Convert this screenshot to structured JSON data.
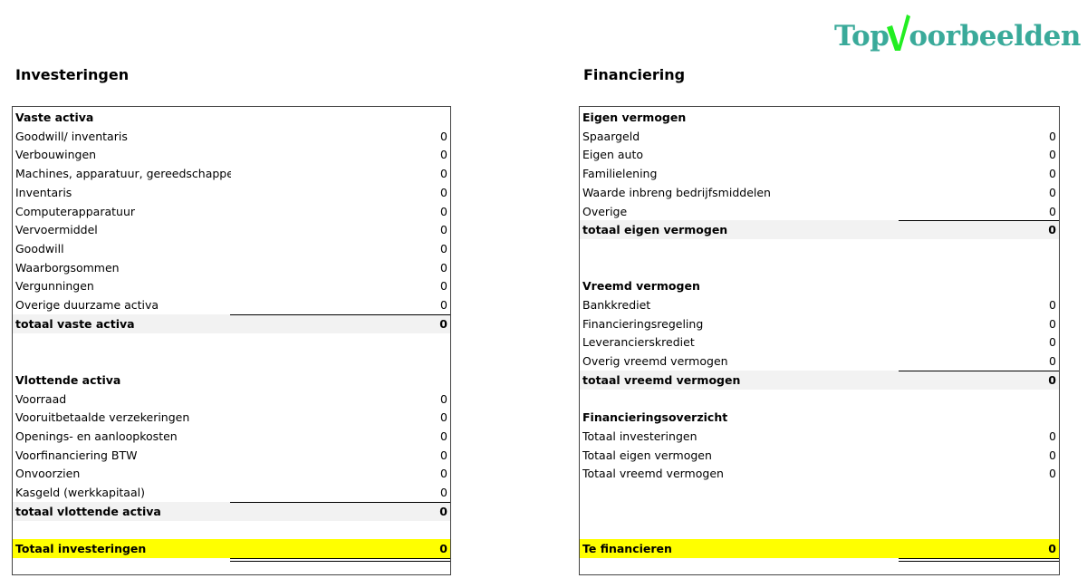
{
  "logo": {
    "text_before": "Top",
    "text_after": "oorbeelden",
    "check_color": "#22ee22",
    "text_color": "#3aaa9a"
  },
  "left": {
    "title": "Investeringen",
    "rows": [
      {
        "type": "head",
        "label": "Vaste activa"
      },
      {
        "type": "item",
        "label": "Goodwill/ inventaris",
        "value": "0"
      },
      {
        "type": "item",
        "label": "Verbouwingen",
        "value": "0"
      },
      {
        "type": "item",
        "label": "Machines, apparatuur, gereedschappen",
        "value": "0"
      },
      {
        "type": "item",
        "label": "Inventaris",
        "value": "0"
      },
      {
        "type": "item",
        "label": "Computerapparatuur",
        "value": "0"
      },
      {
        "type": "item",
        "label": "Vervoermiddel",
        "value": "0"
      },
      {
        "type": "item",
        "label": "Goodwill",
        "value": "0"
      },
      {
        "type": "item",
        "label": "Waarborgsommen",
        "value": "0"
      },
      {
        "type": "item",
        "label": "Vergunningen",
        "value": "0"
      },
      {
        "type": "item",
        "label": "Overige duurzame activa",
        "value": "0"
      },
      {
        "type": "total",
        "label": "totaal vaste activa",
        "value": "0"
      },
      {
        "type": "blank"
      },
      {
        "type": "blank"
      },
      {
        "type": "head",
        "label": "Vlottende activa"
      },
      {
        "type": "item",
        "label": "Voorraad",
        "value": "0"
      },
      {
        "type": "item",
        "label": "Vooruitbetaalde verzekeringen",
        "value": "0"
      },
      {
        "type": "item",
        "label": "Openings- en aanloopkosten",
        "value": "0"
      },
      {
        "type": "item",
        "label": "Voorfinanciering BTW",
        "value": "0"
      },
      {
        "type": "item",
        "label": "Onvoorzien",
        "value": "0"
      },
      {
        "type": "item",
        "label": "Kasgeld (werkkapitaal)",
        "value": "0"
      },
      {
        "type": "total",
        "label": "totaal vlottende activa",
        "value": "0"
      },
      {
        "type": "blank"
      },
      {
        "type": "grand",
        "label": "Totaal investeringen",
        "value": "0"
      }
    ]
  },
  "right": {
    "title": "Financiering",
    "rows": [
      {
        "type": "head",
        "label": "Eigen vermogen"
      },
      {
        "type": "item",
        "label": "Spaargeld",
        "value": "0"
      },
      {
        "type": "item",
        "label": "Eigen auto",
        "value": "0"
      },
      {
        "type": "item",
        "label": "Familielening",
        "value": "0"
      },
      {
        "type": "item",
        "label": "Waarde inbreng bedrijfsmiddelen",
        "value": "0"
      },
      {
        "type": "item",
        "label": "Overige",
        "value": "0"
      },
      {
        "type": "total",
        "label": "totaal eigen vermogen",
        "value": "0"
      },
      {
        "type": "blank"
      },
      {
        "type": "blank"
      },
      {
        "type": "head",
        "label": "Vreemd vermogen"
      },
      {
        "type": "item",
        "label": "Bankkrediet",
        "value": "0"
      },
      {
        "type": "item",
        "label": "Financieringsregeling",
        "value": "0"
      },
      {
        "type": "item",
        "label": "Leverancierskrediet",
        "value": "0"
      },
      {
        "type": "item",
        "label": "Overig vreemd vermogen",
        "value": "0"
      },
      {
        "type": "total",
        "label": "totaal vreemd vermogen",
        "value": "0"
      },
      {
        "type": "blank"
      },
      {
        "type": "head",
        "label": "Financieringsoverzicht"
      },
      {
        "type": "item",
        "label": "Totaal investeringen",
        "value": "0"
      },
      {
        "type": "item",
        "label": "Totaal eigen vermogen",
        "value": "0"
      },
      {
        "type": "item",
        "label": "Totaal vreemd vermogen",
        "value": "0"
      },
      {
        "type": "blank"
      },
      {
        "type": "blank"
      },
      {
        "type": "blank"
      },
      {
        "type": "grand",
        "label": "Te financieren",
        "value": "0"
      }
    ]
  }
}
